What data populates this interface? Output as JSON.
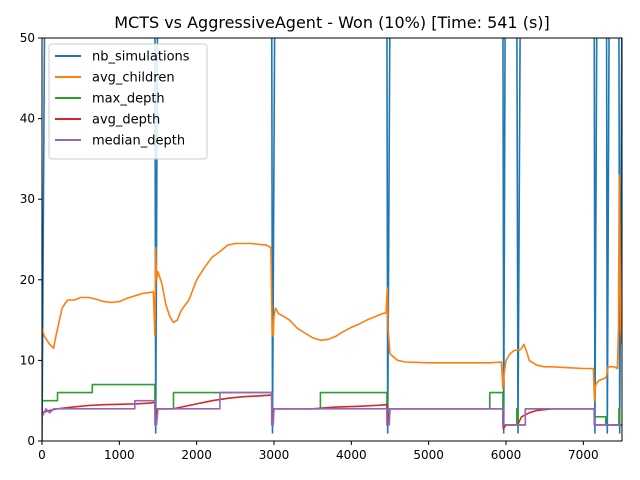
{
  "chart_data": {
    "type": "line",
    "title": "MCTS vs AggressiveAgent - Won (10%) [Time: 541 (s)]",
    "xlabel": "",
    "ylabel": "",
    "xlim": [
      0,
      7500
    ],
    "ylim": [
      0,
      50
    ],
    "x_ticks": [
      "0",
      "1000",
      "2000",
      "3000",
      "4000",
      "5000",
      "6000",
      "7000"
    ],
    "y_ticks": [
      "0",
      "10",
      "20",
      "30",
      "40",
      "50"
    ],
    "grid": false,
    "legend_position": "top-left",
    "series": [
      {
        "name": "nb_simulations",
        "color": "#1f77b4",
        "points": [
          [
            0,
            0
          ],
          [
            35,
            55
          ],
          [
            1460,
            55
          ],
          [
            1470,
            1
          ],
          [
            1495,
            55
          ],
          [
            2970,
            55
          ],
          [
            2980,
            1
          ],
          [
            3010,
            55
          ],
          [
            4460,
            55
          ],
          [
            4470,
            1
          ],
          [
            4500,
            55
          ],
          [
            5960,
            55
          ],
          [
            5970,
            1
          ],
          [
            5990,
            55
          ],
          [
            6140,
            55
          ],
          [
            6155,
            1
          ],
          [
            6185,
            55
          ],
          [
            7140,
            55
          ],
          [
            7150,
            1
          ],
          [
            7175,
            55
          ],
          [
            7300,
            55
          ],
          [
            7310,
            1
          ],
          [
            7335,
            55
          ],
          [
            7460,
            55
          ],
          [
            7470,
            1
          ],
          [
            7500,
            55
          ]
        ]
      },
      {
        "name": "avg_children",
        "color": "#ff7f0e",
        "points": [
          [
            0,
            14
          ],
          [
            30,
            13
          ],
          [
            100,
            12
          ],
          [
            150,
            11.5
          ],
          [
            180,
            13
          ],
          [
            260,
            16.5
          ],
          [
            330,
            17.5
          ],
          [
            420,
            17.5
          ],
          [
            500,
            17.8
          ],
          [
            600,
            17.8
          ],
          [
            700,
            17.6
          ],
          [
            800,
            17.3
          ],
          [
            900,
            17.2
          ],
          [
            1000,
            17.3
          ],
          [
            1100,
            17.7
          ],
          [
            1200,
            18
          ],
          [
            1300,
            18.3
          ],
          [
            1440,
            18.5
          ],
          [
            1460,
            13
          ],
          [
            1470,
            24
          ],
          [
            1480,
            20
          ],
          [
            1500,
            21
          ],
          [
            1550,
            19.5
          ],
          [
            1600,
            17
          ],
          [
            1650,
            15.5
          ],
          [
            1700,
            14.7
          ],
          [
            1750,
            15
          ],
          [
            1800,
            16.2
          ],
          [
            1900,
            17.5
          ],
          [
            2000,
            20
          ],
          [
            2100,
            21.5
          ],
          [
            2200,
            22.8
          ],
          [
            2300,
            23.5
          ],
          [
            2400,
            24.3
          ],
          [
            2500,
            24.5
          ],
          [
            2600,
            24.5
          ],
          [
            2700,
            24.5
          ],
          [
            2800,
            24.4
          ],
          [
            2900,
            24.3
          ],
          [
            2960,
            24
          ],
          [
            2975,
            13.5
          ],
          [
            2990,
            13
          ],
          [
            3000,
            15.5
          ],
          [
            3020,
            16.5
          ],
          [
            3060,
            15.8
          ],
          [
            3120,
            15.5
          ],
          [
            3200,
            15
          ],
          [
            3300,
            14
          ],
          [
            3400,
            13.4
          ],
          [
            3500,
            12.8
          ],
          [
            3600,
            12.5
          ],
          [
            3700,
            12.6
          ],
          [
            3800,
            13
          ],
          [
            3900,
            13.6
          ],
          [
            4000,
            14.1
          ],
          [
            4100,
            14.5
          ],
          [
            4200,
            15
          ],
          [
            4300,
            15.4
          ],
          [
            4400,
            15.8
          ],
          [
            4450,
            15.9
          ],
          [
            4465,
            19
          ],
          [
            4475,
            14
          ],
          [
            4500,
            10.8
          ],
          [
            4600,
            10
          ],
          [
            4700,
            9.8
          ],
          [
            5000,
            9.7
          ],
          [
            5500,
            9.7
          ],
          [
            5800,
            9.7
          ],
          [
            5940,
            9.8
          ],
          [
            5960,
            6.5
          ],
          [
            5970,
            8
          ],
          [
            6000,
            10
          ],
          [
            6050,
            10.8
          ],
          [
            6100,
            11.2
          ],
          [
            6150,
            11.3
          ],
          [
            6180,
            11.3
          ],
          [
            6200,
            11.5
          ],
          [
            6230,
            12
          ],
          [
            6270,
            11
          ],
          [
            6300,
            10
          ],
          [
            6400,
            9.4
          ],
          [
            6500,
            9.2
          ],
          [
            6600,
            9.2
          ],
          [
            6800,
            9.1
          ],
          [
            7000,
            9.0
          ],
          [
            7130,
            9.0
          ],
          [
            7145,
            5
          ],
          [
            7160,
            7
          ],
          [
            7200,
            7.5
          ],
          [
            7280,
            7.8
          ],
          [
            7300,
            8
          ],
          [
            7320,
            9.2
          ],
          [
            7360,
            9.2
          ],
          [
            7400,
            9.2
          ],
          [
            7440,
            9
          ],
          [
            7455,
            14
          ],
          [
            7465,
            33
          ],
          [
            7475,
            20
          ],
          [
            7485,
            14
          ],
          [
            7500,
            12
          ]
        ]
      },
      {
        "name": "max_depth",
        "color": "#2ca02c",
        "points": [
          [
            0,
            5
          ],
          [
            200,
            5
          ],
          [
            200,
            6
          ],
          [
            650,
            6
          ],
          [
            650,
            7
          ],
          [
            1460,
            7
          ],
          [
            1460,
            4
          ],
          [
            1700,
            4
          ],
          [
            1700,
            6
          ],
          [
            2970,
            6
          ],
          [
            2970,
            4
          ],
          [
            3600,
            4
          ],
          [
            3600,
            6
          ],
          [
            4460,
            6
          ],
          [
            4460,
            4
          ],
          [
            5790,
            4
          ],
          [
            5790,
            6
          ],
          [
            5960,
            6
          ],
          [
            5960,
            2
          ],
          [
            6140,
            2
          ],
          [
            6140,
            4
          ],
          [
            6155,
            4
          ],
          [
            6155,
            2
          ],
          [
            6250,
            2
          ],
          [
            6250,
            4
          ],
          [
            7140,
            4
          ],
          [
            7140,
            3
          ],
          [
            7290,
            3
          ],
          [
            7290,
            2
          ],
          [
            7460,
            2
          ],
          [
            7460,
            4
          ],
          [
            7470,
            4
          ],
          [
            7470,
            2
          ],
          [
            7500,
            2
          ]
        ]
      },
      {
        "name": "avg_depth",
        "color": "#d62728",
        "points": [
          [
            0,
            3.5
          ],
          [
            100,
            3.8
          ],
          [
            200,
            4
          ],
          [
            400,
            4.2
          ],
          [
            600,
            4.4
          ],
          [
            800,
            4.5
          ],
          [
            1000,
            4.55
          ],
          [
            1200,
            4.6
          ],
          [
            1400,
            4.7
          ],
          [
            1460,
            4.8
          ],
          [
            1465,
            3
          ],
          [
            1480,
            3.5
          ],
          [
            1500,
            4
          ],
          [
            1700,
            4
          ],
          [
            1800,
            4.2
          ],
          [
            2000,
            4.6
          ],
          [
            2200,
            5
          ],
          [
            2400,
            5.3
          ],
          [
            2600,
            5.5
          ],
          [
            2800,
            5.6
          ],
          [
            2970,
            5.7
          ],
          [
            2975,
            2
          ],
          [
            2990,
            3
          ],
          [
            3000,
            4
          ],
          [
            3500,
            4
          ],
          [
            3800,
            4.2
          ],
          [
            4100,
            4.3
          ],
          [
            4300,
            4.4
          ],
          [
            4460,
            4.5
          ],
          [
            4465,
            2
          ],
          [
            4480,
            3
          ],
          [
            4500,
            4
          ],
          [
            5000,
            4
          ],
          [
            5960,
            4
          ],
          [
            5965,
            1.5
          ],
          [
            6000,
            2
          ],
          [
            6150,
            2
          ],
          [
            6200,
            3
          ],
          [
            6300,
            3.5
          ],
          [
            6400,
            3.8
          ],
          [
            6600,
            4
          ],
          [
            7140,
            4
          ],
          [
            7145,
            2
          ],
          [
            7160,
            2
          ],
          [
            7300,
            2
          ],
          [
            7500,
            2
          ]
        ]
      },
      {
        "name": "median_depth",
        "color": "#9467bd",
        "points": [
          [
            0,
            3
          ],
          [
            50,
            4
          ],
          [
            100,
            3.5
          ],
          [
            150,
            4
          ],
          [
            1200,
            4
          ],
          [
            1200,
            5
          ],
          [
            1460,
            5
          ],
          [
            1460,
            2
          ],
          [
            1480,
            2
          ],
          [
            1500,
            4
          ],
          [
            2300,
            4
          ],
          [
            2300,
            6
          ],
          [
            2970,
            6
          ],
          [
            2970,
            2
          ],
          [
            2990,
            2
          ],
          [
            3000,
            4
          ],
          [
            4460,
            4
          ],
          [
            4460,
            2
          ],
          [
            4490,
            2
          ],
          [
            4500,
            4
          ],
          [
            5960,
            4
          ],
          [
            5960,
            2
          ],
          [
            6250,
            2
          ],
          [
            6250,
            4
          ],
          [
            7140,
            4
          ],
          [
            7140,
            2
          ],
          [
            7500,
            2
          ]
        ]
      }
    ]
  }
}
